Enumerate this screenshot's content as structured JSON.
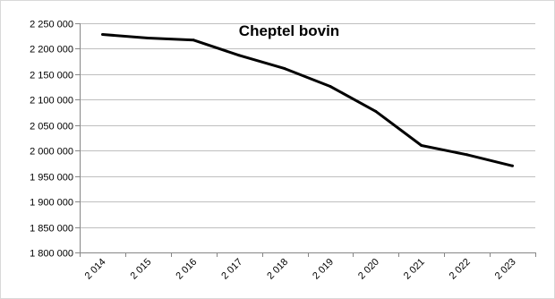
{
  "chart_data": {
    "type": "line",
    "title": "Cheptel bovin",
    "categories": [
      "2 014",
      "2 015",
      "2 016",
      "2 017",
      "2 018",
      "2 019",
      "2 020",
      "2 021",
      "2 022",
      "2 023"
    ],
    "series": [
      {
        "values": [
          2228000,
          2221000,
          2217000,
          2187000,
          2161000,
          2126000,
          2077000,
          2010000,
          1992000,
          1970000
        ]
      }
    ],
    "ylim": [
      1800000,
      2250000
    ],
    "y_ticks": [
      {
        "value": 1800000,
        "label": "1 800 000"
      },
      {
        "value": 1850000,
        "label": "1 850 000"
      },
      {
        "value": 1900000,
        "label": "1 900 000"
      },
      {
        "value": 1950000,
        "label": "1 950 000"
      },
      {
        "value": 2000000,
        "label": "2 000 000"
      },
      {
        "value": 2050000,
        "label": "2 050 000"
      },
      {
        "value": 2100000,
        "label": "2 100 000"
      },
      {
        "value": 2150000,
        "label": "2 150 000"
      },
      {
        "value": 2200000,
        "label": "2 200 000"
      },
      {
        "value": 2250000,
        "label": "2 250 000"
      }
    ],
    "grid": true,
    "legend": "none",
    "colors": {
      "line": "#000000",
      "grid": "#bfbfbf",
      "axis": "#868686"
    }
  }
}
